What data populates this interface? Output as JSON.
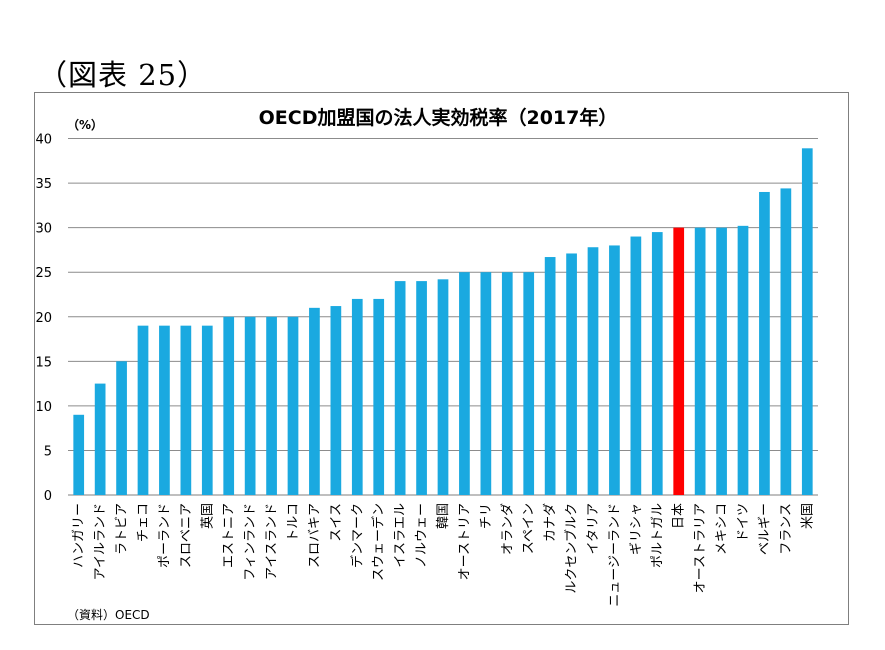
{
  "figure_label": "（図表 25）",
  "source_note": "（資料）OECD",
  "chart_data": {
    "type": "bar",
    "title": "OECD加盟国の法人実効税率（2017年）",
    "ylabel": "",
    "y_unit_label": "（%）",
    "xlabel": "",
    "ylim": [
      0,
      40
    ],
    "yticks": [
      "0",
      "5",
      "10",
      "15",
      "20",
      "25",
      "30",
      "35",
      "40"
    ],
    "grid": true,
    "colors": {
      "default": "#1aa9e0",
      "highlight": "#ff0000"
    },
    "highlight_category": "日本",
    "categories": [
      "ハンガリー",
      "アイルランド",
      "ラトビア",
      "チェコ",
      "ポーランド",
      "スロベニア",
      "英国",
      "エストニア",
      "フィンランド",
      "アイスランド",
      "トルコ",
      "スロバキア",
      "スイス",
      "デンマーク",
      "スウェーデン",
      "イスラエル",
      "ノルウェー",
      "韓国",
      "オーストリア",
      "チリ",
      "オランダ",
      "スペイン",
      "カナダ",
      "ルクセンブルク",
      "イタリア",
      "ニュージーランド",
      "ギリシャ",
      "ポルトガル",
      "日本",
      "オーストラリア",
      "メキシコ",
      "ドイツ",
      "ベルギー",
      "フランス",
      "米国"
    ],
    "values": [
      9.0,
      12.5,
      15.0,
      19.0,
      19.0,
      19.0,
      19.0,
      20.0,
      20.0,
      20.0,
      20.0,
      21.0,
      21.2,
      22.0,
      22.0,
      24.0,
      24.0,
      24.2,
      25.0,
      25.0,
      25.0,
      25.0,
      26.7,
      27.1,
      27.8,
      28.0,
      29.0,
      29.5,
      30.0,
      30.0,
      30.0,
      30.2,
      34.0,
      34.4,
      38.9
    ]
  }
}
